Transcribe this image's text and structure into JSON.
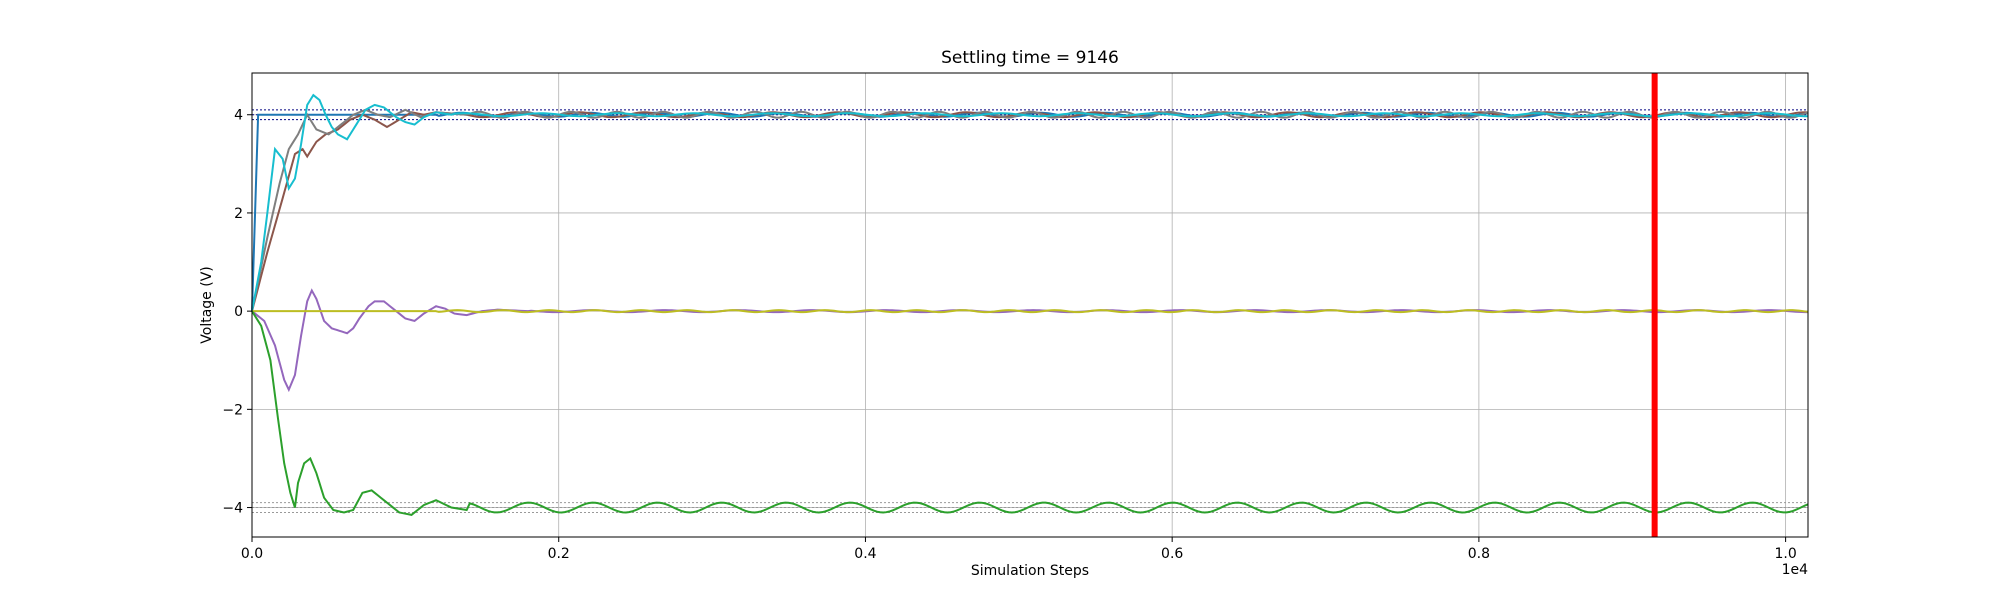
{
  "chart_data": {
    "type": "line",
    "title": "Settling time = 9146",
    "xlabel": "Simulation Steps",
    "ylabel": "Voltage (V)",
    "x_offset_label": "1e4",
    "xlim": [
      0,
      10146
    ],
    "ylim": [
      -4.6,
      4.85
    ],
    "x_ticks": [
      0,
      2000,
      4000,
      6000,
      8000,
      10000
    ],
    "x_tick_labels": [
      "0.0",
      "0.2",
      "0.4",
      "0.6",
      "0.8",
      "1.0"
    ],
    "y_ticks": [
      -4,
      -2,
      0,
      2,
      4
    ],
    "y_tick_labels": [
      "−4",
      "−2",
      "0",
      "2",
      "4"
    ],
    "grid": true,
    "settling_time": 9146,
    "settling_line_color": "#ff0000",
    "tolerance_bands": [
      {
        "values": [
          3.9,
          4.0,
          4.1
        ],
        "color": "#000080"
      },
      {
        "values": [
          -3.9,
          -4.0,
          -4.1
        ],
        "color": "#999999"
      }
    ],
    "series": [
      {
        "color": "#1f77b4",
        "target": 4,
        "ripple": 0.04,
        "period": 420,
        "points": [
          [
            0,
            0
          ],
          [
            40,
            4.0
          ],
          [
            120,
            4.0
          ],
          [
            10146,
            4.0
          ]
        ]
      },
      {
        "color": "#8c564b",
        "target": 4,
        "ripple": 0.05,
        "period": 420,
        "points": [
          [
            0,
            0
          ],
          [
            100,
            1.2
          ],
          [
            200,
            2.3
          ],
          [
            280,
            3.2
          ],
          [
            330,
            3.3
          ],
          [
            360,
            3.15
          ],
          [
            420,
            3.45
          ],
          [
            480,
            3.6
          ],
          [
            560,
            3.7
          ],
          [
            640,
            3.9
          ],
          [
            720,
            4.0
          ],
          [
            800,
            3.9
          ],
          [
            880,
            3.75
          ],
          [
            960,
            3.9
          ],
          [
            1040,
            4.05
          ],
          [
            1120,
            4.0
          ],
          [
            1200,
            4.05
          ],
          [
            1400,
            4.0
          ],
          [
            10146,
            4.0
          ]
        ]
      },
      {
        "color": "#7f7f7f",
        "target": 4,
        "ripple": 0.06,
        "period": 300,
        "points": [
          [
            0,
            0
          ],
          [
            100,
            1.5
          ],
          [
            180,
            2.6
          ],
          [
            240,
            3.3
          ],
          [
            300,
            3.6
          ],
          [
            360,
            4.0
          ],
          [
            420,
            3.7
          ],
          [
            500,
            3.6
          ],
          [
            580,
            3.8
          ],
          [
            660,
            4.0
          ],
          [
            740,
            4.1
          ],
          [
            820,
            4.0
          ],
          [
            900,
            3.95
          ],
          [
            1000,
            4.1
          ],
          [
            1100,
            3.95
          ],
          [
            1200,
            4.05
          ],
          [
            1400,
            4.0
          ],
          [
            10146,
            4.0
          ]
        ]
      },
      {
        "color": "#17becf",
        "target": 4,
        "ripple": 0.03,
        "period": 500,
        "points": [
          [
            0,
            0
          ],
          [
            60,
            1.0
          ],
          [
            100,
            2.0
          ],
          [
            150,
            3.3
          ],
          [
            200,
            3.1
          ],
          [
            240,
            2.5
          ],
          [
            280,
            2.7
          ],
          [
            320,
            3.4
          ],
          [
            360,
            4.2
          ],
          [
            400,
            4.4
          ],
          [
            440,
            4.3
          ],
          [
            480,
            4.0
          ],
          [
            520,
            3.75
          ],
          [
            560,
            3.6
          ],
          [
            620,
            3.5
          ],
          [
            680,
            3.8
          ],
          [
            740,
            4.1
          ],
          [
            800,
            4.2
          ],
          [
            860,
            4.15
          ],
          [
            940,
            3.95
          ],
          [
            1000,
            3.85
          ],
          [
            1060,
            3.8
          ],
          [
            1120,
            3.95
          ],
          [
            1200,
            4.05
          ],
          [
            1300,
            4.0
          ],
          [
            10146,
            4.0
          ]
        ]
      },
      {
        "color": "#9467bd",
        "target": 0,
        "ripple": 0.02,
        "period": 480,
        "points": [
          [
            0,
            0
          ],
          [
            80,
            -0.2
          ],
          [
            150,
            -0.7
          ],
          [
            210,
            -1.4
          ],
          [
            240,
            -1.6
          ],
          [
            280,
            -1.3
          ],
          [
            320,
            -0.5
          ],
          [
            360,
            0.2
          ],
          [
            390,
            0.42
          ],
          [
            420,
            0.25
          ],
          [
            470,
            -0.2
          ],
          [
            520,
            -0.35
          ],
          [
            570,
            -0.4
          ],
          [
            620,
            -0.45
          ],
          [
            660,
            -0.35
          ],
          [
            700,
            -0.15
          ],
          [
            760,
            0.1
          ],
          [
            800,
            0.2
          ],
          [
            860,
            0.2
          ],
          [
            920,
            0.05
          ],
          [
            1000,
            -0.15
          ],
          [
            1060,
            -0.2
          ],
          [
            1120,
            -0.05
          ],
          [
            1200,
            0.1
          ],
          [
            1260,
            0.05
          ],
          [
            1320,
            -0.05
          ],
          [
            1400,
            -0.08
          ],
          [
            1500,
            0.0
          ],
          [
            1600,
            0.03
          ],
          [
            1800,
            0.0
          ],
          [
            10146,
            0.0
          ]
        ]
      },
      {
        "color": "#bcbd22",
        "target": 0,
        "ripple": 0.02,
        "period": 300,
        "points": [
          [
            0,
            0
          ],
          [
            10146,
            0.0
          ]
        ]
      },
      {
        "color": "#2ca02c",
        "target": -4,
        "ripple": 0.1,
        "period": 420,
        "points": [
          [
            0,
            0
          ],
          [
            60,
            -0.3
          ],
          [
            120,
            -1.0
          ],
          [
            170,
            -2.2
          ],
          [
            210,
            -3.1
          ],
          [
            250,
            -3.7
          ],
          [
            280,
            -4.0
          ],
          [
            300,
            -3.5
          ],
          [
            340,
            -3.1
          ],
          [
            380,
            -3.0
          ],
          [
            420,
            -3.3
          ],
          [
            470,
            -3.8
          ],
          [
            530,
            -4.05
          ],
          [
            600,
            -4.1
          ],
          [
            660,
            -4.05
          ],
          [
            720,
            -3.7
          ],
          [
            780,
            -3.65
          ],
          [
            840,
            -3.8
          ],
          [
            900,
            -3.95
          ],
          [
            960,
            -4.1
          ],
          [
            1040,
            -4.15
          ],
          [
            1120,
            -3.95
          ],
          [
            1200,
            -3.85
          ],
          [
            1300,
            -4.0
          ],
          [
            1400,
            -4.05
          ],
          [
            10146,
            -4.0
          ]
        ]
      }
    ]
  }
}
